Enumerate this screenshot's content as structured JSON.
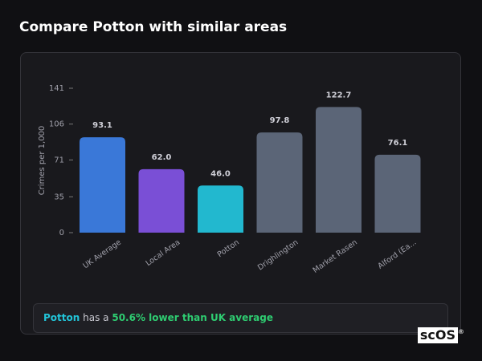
{
  "header": {
    "title": "Compare Potton with similar areas"
  },
  "chart_data": {
    "type": "bar",
    "y_label": "Crimes per 1,000",
    "categories": [
      "UK Average",
      "Local Area",
      "Potton",
      "Drighlington",
      "Market Rasen",
      "Alford (Ea..."
    ],
    "values": [
      93.1,
      62.0,
      46.0,
      97.8,
      122.7,
      76.1
    ],
    "value_labels": [
      "93.1",
      "62.0",
      "46.0",
      "97.8",
      "122.7",
      "76.1"
    ],
    "colors": [
      "#3a78d8",
      "#7a4fd6",
      "#22b8cf",
      "#5b6577",
      "#5b6577",
      "#5b6577"
    ],
    "ylim": [
      0,
      141
    ],
    "yticks": [
      0,
      35,
      71,
      106,
      141
    ],
    "grid": false
  },
  "summary": {
    "area": "Potton",
    "text": "has a",
    "highlight": "50.6% lower than UK average"
  },
  "logo": {
    "text": "scOS",
    "mark": "®"
  }
}
